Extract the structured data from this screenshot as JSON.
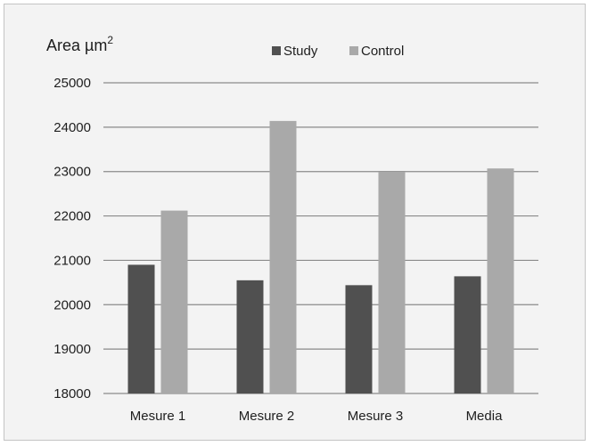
{
  "chart_data": {
    "type": "bar",
    "ylabel_text": "Area  µm",
    "ylabel_superscript": "2",
    "categories": [
      "Mesure 1",
      "Mesure 2",
      "Mesure 3",
      "Media"
    ],
    "series": [
      {
        "name": "Study",
        "color": "#505050",
        "values": [
          20900,
          20550,
          20440,
          20640
        ]
      },
      {
        "name": "Control",
        "color": "#a9a9a9",
        "values": [
          22120,
          24140,
          22990,
          23070
        ]
      }
    ],
    "ylim": [
      18000,
      25000
    ],
    "yticks": [
      "25000",
      "24000",
      "23000",
      "22000",
      "21000",
      "20000",
      "19000",
      "18000"
    ],
    "grid": true,
    "legend_position": "top-center"
  }
}
